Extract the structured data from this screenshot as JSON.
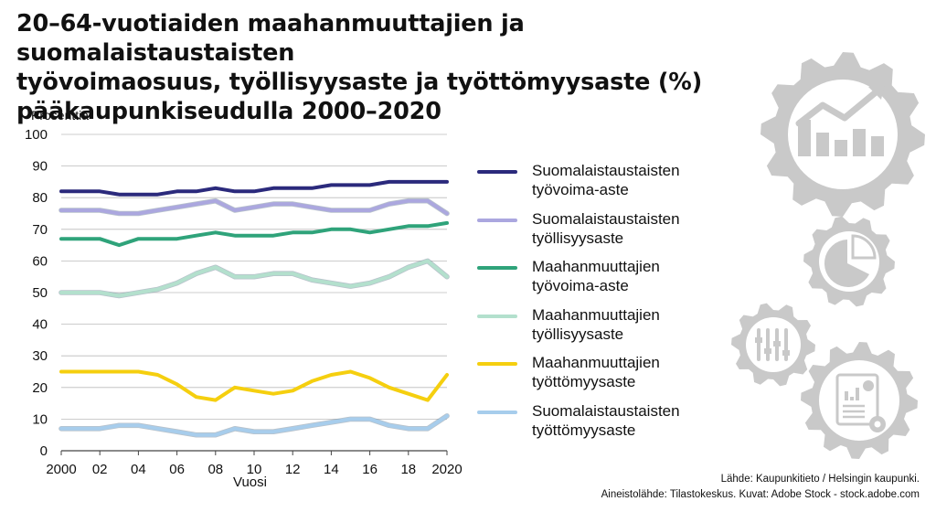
{
  "title_lines": [
    "20–64-vuotiaiden maahanmuuttajien ja suomalaistaustaisten",
    "työvoimaosuus, työllisyysaste ja työttömyysaste (%)",
    "pääkaupunkiseudulla 2000–2020"
  ],
  "colors": {
    "text": "#111111",
    "grid": "#bbbbbb",
    "gear": "#c9c9c9",
    "gear_inner": "#ffffff"
  },
  "icons": [
    "line-chart-gear-icon",
    "pie-chart-gear-icon",
    "sliders-gear-icon",
    "report-gear-icon"
  ],
  "chart_data": {
    "type": "line",
    "ylabel": "Prosenttia",
    "xlabel": "Vuosi",
    "ylim": [
      0,
      100
    ],
    "yticks": [
      0,
      10,
      20,
      30,
      40,
      50,
      60,
      70,
      80,
      90,
      100
    ],
    "xlim": [
      2000,
      2020
    ],
    "xtick_values": [
      2000,
      2002,
      2004,
      2006,
      2008,
      2010,
      2012,
      2014,
      2016,
      2018,
      2020
    ],
    "xtick_labels": [
      "2000",
      "02",
      "04",
      "06",
      "08",
      "10",
      "12",
      "14",
      "16",
      "18",
      "2020"
    ],
    "grid": "horizontal",
    "legend_position": "right",
    "x": [
      2000,
      2001,
      2002,
      2003,
      2004,
      2005,
      2006,
      2007,
      2008,
      2009,
      2010,
      2011,
      2012,
      2013,
      2014,
      2015,
      2016,
      2017,
      2018,
      2019,
      2020
    ],
    "series": [
      {
        "name_lines": [
          "Suomalaistaustaisten",
          "työvoima-aste"
        ],
        "color": "#2b2a7c",
        "width": 4,
        "values": [
          82,
          82,
          82,
          81,
          81,
          81,
          82,
          82,
          83,
          82,
          82,
          83,
          83,
          83,
          84,
          84,
          84,
          85,
          85,
          85,
          85
        ]
      },
      {
        "name_lines": [
          "Suomalaistaustaisten",
          "työllisyysaste"
        ],
        "color": "#aba7df",
        "width": 4,
        "values": [
          76,
          76,
          76,
          75,
          75,
          76,
          77,
          78,
          79,
          76,
          77,
          78,
          78,
          77,
          76,
          76,
          76,
          78,
          79,
          79,
          75
        ]
      },
      {
        "name_lines": [
          "Maahanmuuttajien",
          "työvoima-aste"
        ],
        "color": "#2fa37a",
        "width": 4,
        "values": [
          67,
          67,
          67,
          65,
          67,
          67,
          67,
          68,
          69,
          68,
          68,
          68,
          69,
          69,
          70,
          70,
          69,
          70,
          71,
          71,
          72
        ]
      },
      {
        "name_lines": [
          "Maahanmuuttajien",
          "työllisyysaste"
        ],
        "color": "#b3e0cd",
        "width": 4,
        "values": [
          50,
          50,
          50,
          49,
          50,
          51,
          53,
          56,
          58,
          55,
          55,
          56,
          56,
          54,
          53,
          52,
          53,
          55,
          58,
          60,
          55
        ]
      },
      {
        "name_lines": [
          "Maahanmuuttajien",
          "työttömyysaste"
        ],
        "color": "#f5cf0f",
        "width": 4,
        "values": [
          25,
          25,
          25,
          25,
          25,
          24,
          21,
          17,
          16,
          20,
          19,
          18,
          19,
          22,
          24,
          25,
          23,
          20,
          18,
          16,
          24
        ]
      },
      {
        "name_lines": [
          "Suomalaistaustaisten",
          "työttömyysaste"
        ],
        "color": "#a7cdec",
        "width": 4,
        "values": [
          7,
          7,
          7,
          8,
          8,
          7,
          6,
          5,
          5,
          7,
          6,
          6,
          7,
          8,
          9,
          10,
          10,
          8,
          7,
          7,
          11
        ]
      }
    ]
  },
  "source_lines": [
    "Lähde: Kaupunkitieto / Helsingin kaupunki.",
    "Aineistolähde: Tilastokeskus. Kuvat: Adobe Stock - stock.adobe.com"
  ]
}
